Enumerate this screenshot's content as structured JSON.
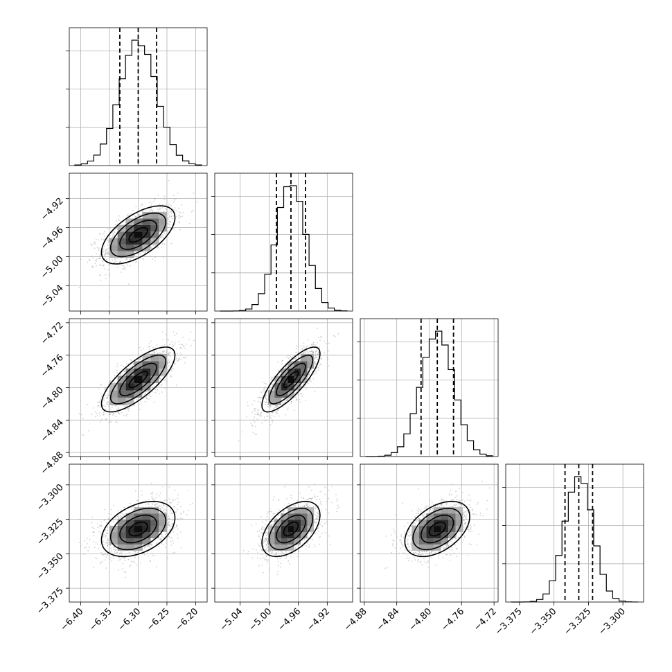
{
  "chart_data": {
    "type": "corner",
    "grid": true,
    "colors": {
      "histogram": "#000000",
      "density": "#000000",
      "points": "#9a9a9a",
      "grid": "#b0b0b0"
    },
    "parameters": [
      {
        "mean": -6.3,
        "sigma": 0.032,
        "quantiles": [
          -6.332,
          -6.3,
          -6.268
        ],
        "range": [
          -6.42,
          -6.18
        ],
        "ticks": [
          -6.4,
          -6.35,
          -6.3,
          -6.25,
          -6.2
        ],
        "tick_labels": [
          "−6.40",
          "−6.35",
          "−6.30",
          "−6.25",
          "−6.20"
        ]
      },
      {
        "mean": -4.97,
        "sigma": 0.02,
        "quantiles": [
          -4.99,
          -4.97,
          -4.95
        ],
        "range": [
          -5.075,
          -4.885
        ],
        "ticks": [
          -5.04,
          -5.0,
          -4.96,
          -4.92
        ],
        "tick_labels": [
          "−5.04",
          "−5.00",
          "−4.96",
          "−4.92"
        ]
      },
      {
        "mean": -4.79,
        "sigma": 0.02,
        "quantiles": [
          -4.81,
          -4.79,
          -4.77
        ],
        "range": [
          -4.885,
          -4.715
        ],
        "ticks": [
          -4.88,
          -4.84,
          -4.8,
          -4.76,
          -4.72
        ],
        "tick_labels": [
          "−4.88",
          "−4.84",
          "−4.80",
          "−4.76",
          "−4.72"
        ]
      },
      {
        "mean": -3.332,
        "sigma": 0.01,
        "quantiles": [
          -3.342,
          -3.332,
          -3.322
        ],
        "range": [
          -3.385,
          -3.285
        ],
        "ticks": [
          -3.375,
          -3.35,
          -3.325,
          -3.3
        ],
        "tick_labels": [
          "−3.375",
          "−3.350",
          "−3.325",
          "−3.300"
        ]
      }
    ],
    "correlations": [
      {
        "pair": [
          0,
          1
        ],
        "rho": 0.6
      },
      {
        "pair": [
          0,
          2
        ],
        "rho": 0.75
      },
      {
        "pair": [
          1,
          2
        ],
        "rho": 0.8
      },
      {
        "pair": [
          0,
          3
        ],
        "rho": 0.4
      },
      {
        "pair": [
          1,
          3
        ],
        "rho": 0.5
      },
      {
        "pair": [
          2,
          3
        ],
        "rho": 0.45
      }
    ]
  }
}
